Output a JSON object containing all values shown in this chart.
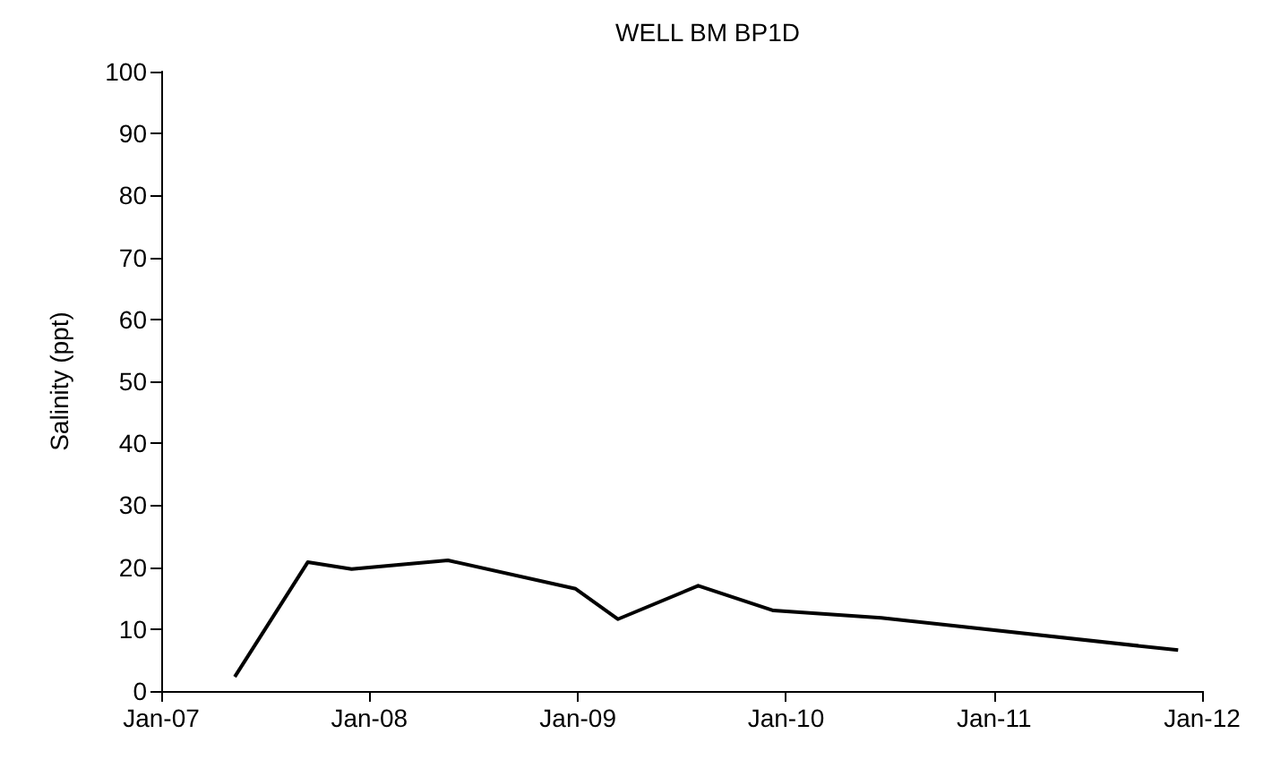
{
  "chart_data": {
    "type": "line",
    "title": "WELL BM BP1D",
    "ylabel": "Salinity (ppt)",
    "x": [
      "2007-05-10",
      "2007-09-15",
      "2007-12-01",
      "2008-05-18",
      "2008-12-28",
      "2009-03-12",
      "2009-07-31",
      "2009-12-10",
      "2010-06-17",
      "2011-11-20"
    ],
    "series": [
      {
        "color": "#000000",
        "values": [
          2.3,
          20.8,
          19.7,
          21.1,
          16.5,
          11.6,
          17,
          13,
          11.8,
          6.6
        ]
      }
    ],
    "xlim": [
      "2007-01-01",
      "2012-01-01"
    ],
    "xticks": [
      {
        "value": "2007-01-01",
        "label": "Jan-07"
      },
      {
        "value": "2008-01-01",
        "label": "Jan-08"
      },
      {
        "value": "2009-01-01",
        "label": "Jan-09"
      },
      {
        "value": "2010-01-01",
        "label": "Jan-10"
      },
      {
        "value": "2011-01-01",
        "label": "Jan-11"
      },
      {
        "value": "2012-01-01",
        "label": "Jan-12"
      }
    ],
    "ylim": [
      0,
      100
    ],
    "yticks": [
      0,
      10,
      20,
      30,
      40,
      50,
      60,
      70,
      80,
      90,
      100
    ],
    "grid": false,
    "marker": "none",
    "line_style": "solid"
  }
}
